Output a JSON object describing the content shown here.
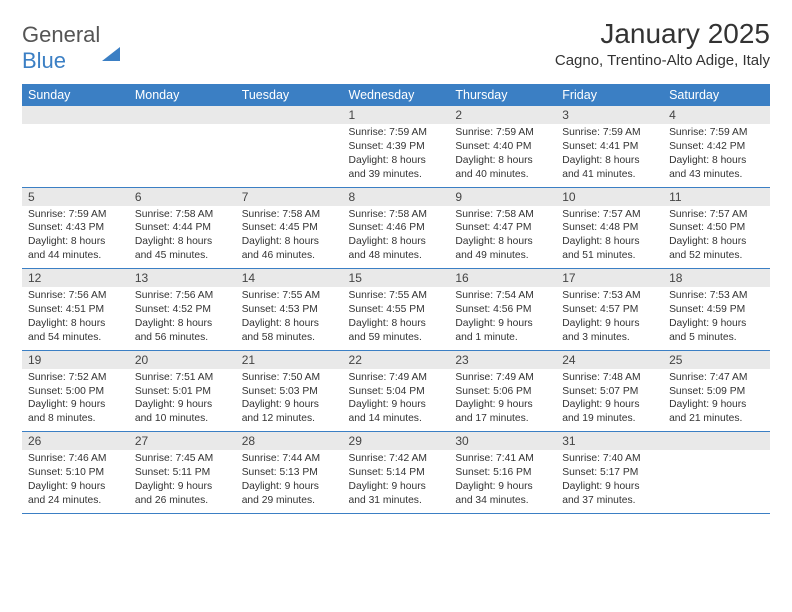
{
  "brand": {
    "part1": "General",
    "part2": "Blue"
  },
  "title": "January 2025",
  "location": "Cagno, Trentino-Alto Adige, Italy",
  "colors": {
    "accent": "#3b7fc4",
    "daynum_bg": "#e9e9e9",
    "text": "#333333",
    "bg": "#ffffff"
  },
  "weekdays": [
    "Sunday",
    "Monday",
    "Tuesday",
    "Wednesday",
    "Thursday",
    "Friday",
    "Saturday"
  ],
  "weeks": [
    [
      null,
      null,
      null,
      {
        "n": "1",
        "sr": "Sunrise: 7:59 AM",
        "ss": "Sunset: 4:39 PM",
        "d1": "Daylight: 8 hours",
        "d2": "and 39 minutes."
      },
      {
        "n": "2",
        "sr": "Sunrise: 7:59 AM",
        "ss": "Sunset: 4:40 PM",
        "d1": "Daylight: 8 hours",
        "d2": "and 40 minutes."
      },
      {
        "n": "3",
        "sr": "Sunrise: 7:59 AM",
        "ss": "Sunset: 4:41 PM",
        "d1": "Daylight: 8 hours",
        "d2": "and 41 minutes."
      },
      {
        "n": "4",
        "sr": "Sunrise: 7:59 AM",
        "ss": "Sunset: 4:42 PM",
        "d1": "Daylight: 8 hours",
        "d2": "and 43 minutes."
      }
    ],
    [
      {
        "n": "5",
        "sr": "Sunrise: 7:59 AM",
        "ss": "Sunset: 4:43 PM",
        "d1": "Daylight: 8 hours",
        "d2": "and 44 minutes."
      },
      {
        "n": "6",
        "sr": "Sunrise: 7:58 AM",
        "ss": "Sunset: 4:44 PM",
        "d1": "Daylight: 8 hours",
        "d2": "and 45 minutes."
      },
      {
        "n": "7",
        "sr": "Sunrise: 7:58 AM",
        "ss": "Sunset: 4:45 PM",
        "d1": "Daylight: 8 hours",
        "d2": "and 46 minutes."
      },
      {
        "n": "8",
        "sr": "Sunrise: 7:58 AM",
        "ss": "Sunset: 4:46 PM",
        "d1": "Daylight: 8 hours",
        "d2": "and 48 minutes."
      },
      {
        "n": "9",
        "sr": "Sunrise: 7:58 AM",
        "ss": "Sunset: 4:47 PM",
        "d1": "Daylight: 8 hours",
        "d2": "and 49 minutes."
      },
      {
        "n": "10",
        "sr": "Sunrise: 7:57 AM",
        "ss": "Sunset: 4:48 PM",
        "d1": "Daylight: 8 hours",
        "d2": "and 51 minutes."
      },
      {
        "n": "11",
        "sr": "Sunrise: 7:57 AM",
        "ss": "Sunset: 4:50 PM",
        "d1": "Daylight: 8 hours",
        "d2": "and 52 minutes."
      }
    ],
    [
      {
        "n": "12",
        "sr": "Sunrise: 7:56 AM",
        "ss": "Sunset: 4:51 PM",
        "d1": "Daylight: 8 hours",
        "d2": "and 54 minutes."
      },
      {
        "n": "13",
        "sr": "Sunrise: 7:56 AM",
        "ss": "Sunset: 4:52 PM",
        "d1": "Daylight: 8 hours",
        "d2": "and 56 minutes."
      },
      {
        "n": "14",
        "sr": "Sunrise: 7:55 AM",
        "ss": "Sunset: 4:53 PM",
        "d1": "Daylight: 8 hours",
        "d2": "and 58 minutes."
      },
      {
        "n": "15",
        "sr": "Sunrise: 7:55 AM",
        "ss": "Sunset: 4:55 PM",
        "d1": "Daylight: 8 hours",
        "d2": "and 59 minutes."
      },
      {
        "n": "16",
        "sr": "Sunrise: 7:54 AM",
        "ss": "Sunset: 4:56 PM",
        "d1": "Daylight: 9 hours",
        "d2": "and 1 minute."
      },
      {
        "n": "17",
        "sr": "Sunrise: 7:53 AM",
        "ss": "Sunset: 4:57 PM",
        "d1": "Daylight: 9 hours",
        "d2": "and 3 minutes."
      },
      {
        "n": "18",
        "sr": "Sunrise: 7:53 AM",
        "ss": "Sunset: 4:59 PM",
        "d1": "Daylight: 9 hours",
        "d2": "and 5 minutes."
      }
    ],
    [
      {
        "n": "19",
        "sr": "Sunrise: 7:52 AM",
        "ss": "Sunset: 5:00 PM",
        "d1": "Daylight: 9 hours",
        "d2": "and 8 minutes."
      },
      {
        "n": "20",
        "sr": "Sunrise: 7:51 AM",
        "ss": "Sunset: 5:01 PM",
        "d1": "Daylight: 9 hours",
        "d2": "and 10 minutes."
      },
      {
        "n": "21",
        "sr": "Sunrise: 7:50 AM",
        "ss": "Sunset: 5:03 PM",
        "d1": "Daylight: 9 hours",
        "d2": "and 12 minutes."
      },
      {
        "n": "22",
        "sr": "Sunrise: 7:49 AM",
        "ss": "Sunset: 5:04 PM",
        "d1": "Daylight: 9 hours",
        "d2": "and 14 minutes."
      },
      {
        "n": "23",
        "sr": "Sunrise: 7:49 AM",
        "ss": "Sunset: 5:06 PM",
        "d1": "Daylight: 9 hours",
        "d2": "and 17 minutes."
      },
      {
        "n": "24",
        "sr": "Sunrise: 7:48 AM",
        "ss": "Sunset: 5:07 PM",
        "d1": "Daylight: 9 hours",
        "d2": "and 19 minutes."
      },
      {
        "n": "25",
        "sr": "Sunrise: 7:47 AM",
        "ss": "Sunset: 5:09 PM",
        "d1": "Daylight: 9 hours",
        "d2": "and 21 minutes."
      }
    ],
    [
      {
        "n": "26",
        "sr": "Sunrise: 7:46 AM",
        "ss": "Sunset: 5:10 PM",
        "d1": "Daylight: 9 hours",
        "d2": "and 24 minutes."
      },
      {
        "n": "27",
        "sr": "Sunrise: 7:45 AM",
        "ss": "Sunset: 5:11 PM",
        "d1": "Daylight: 9 hours",
        "d2": "and 26 minutes."
      },
      {
        "n": "28",
        "sr": "Sunrise: 7:44 AM",
        "ss": "Sunset: 5:13 PM",
        "d1": "Daylight: 9 hours",
        "d2": "and 29 minutes."
      },
      {
        "n": "29",
        "sr": "Sunrise: 7:42 AM",
        "ss": "Sunset: 5:14 PM",
        "d1": "Daylight: 9 hours",
        "d2": "and 31 minutes."
      },
      {
        "n": "30",
        "sr": "Sunrise: 7:41 AM",
        "ss": "Sunset: 5:16 PM",
        "d1": "Daylight: 9 hours",
        "d2": "and 34 minutes."
      },
      {
        "n": "31",
        "sr": "Sunrise: 7:40 AM",
        "ss": "Sunset: 5:17 PM",
        "d1": "Daylight: 9 hours",
        "d2": "and 37 minutes."
      },
      null
    ]
  ]
}
